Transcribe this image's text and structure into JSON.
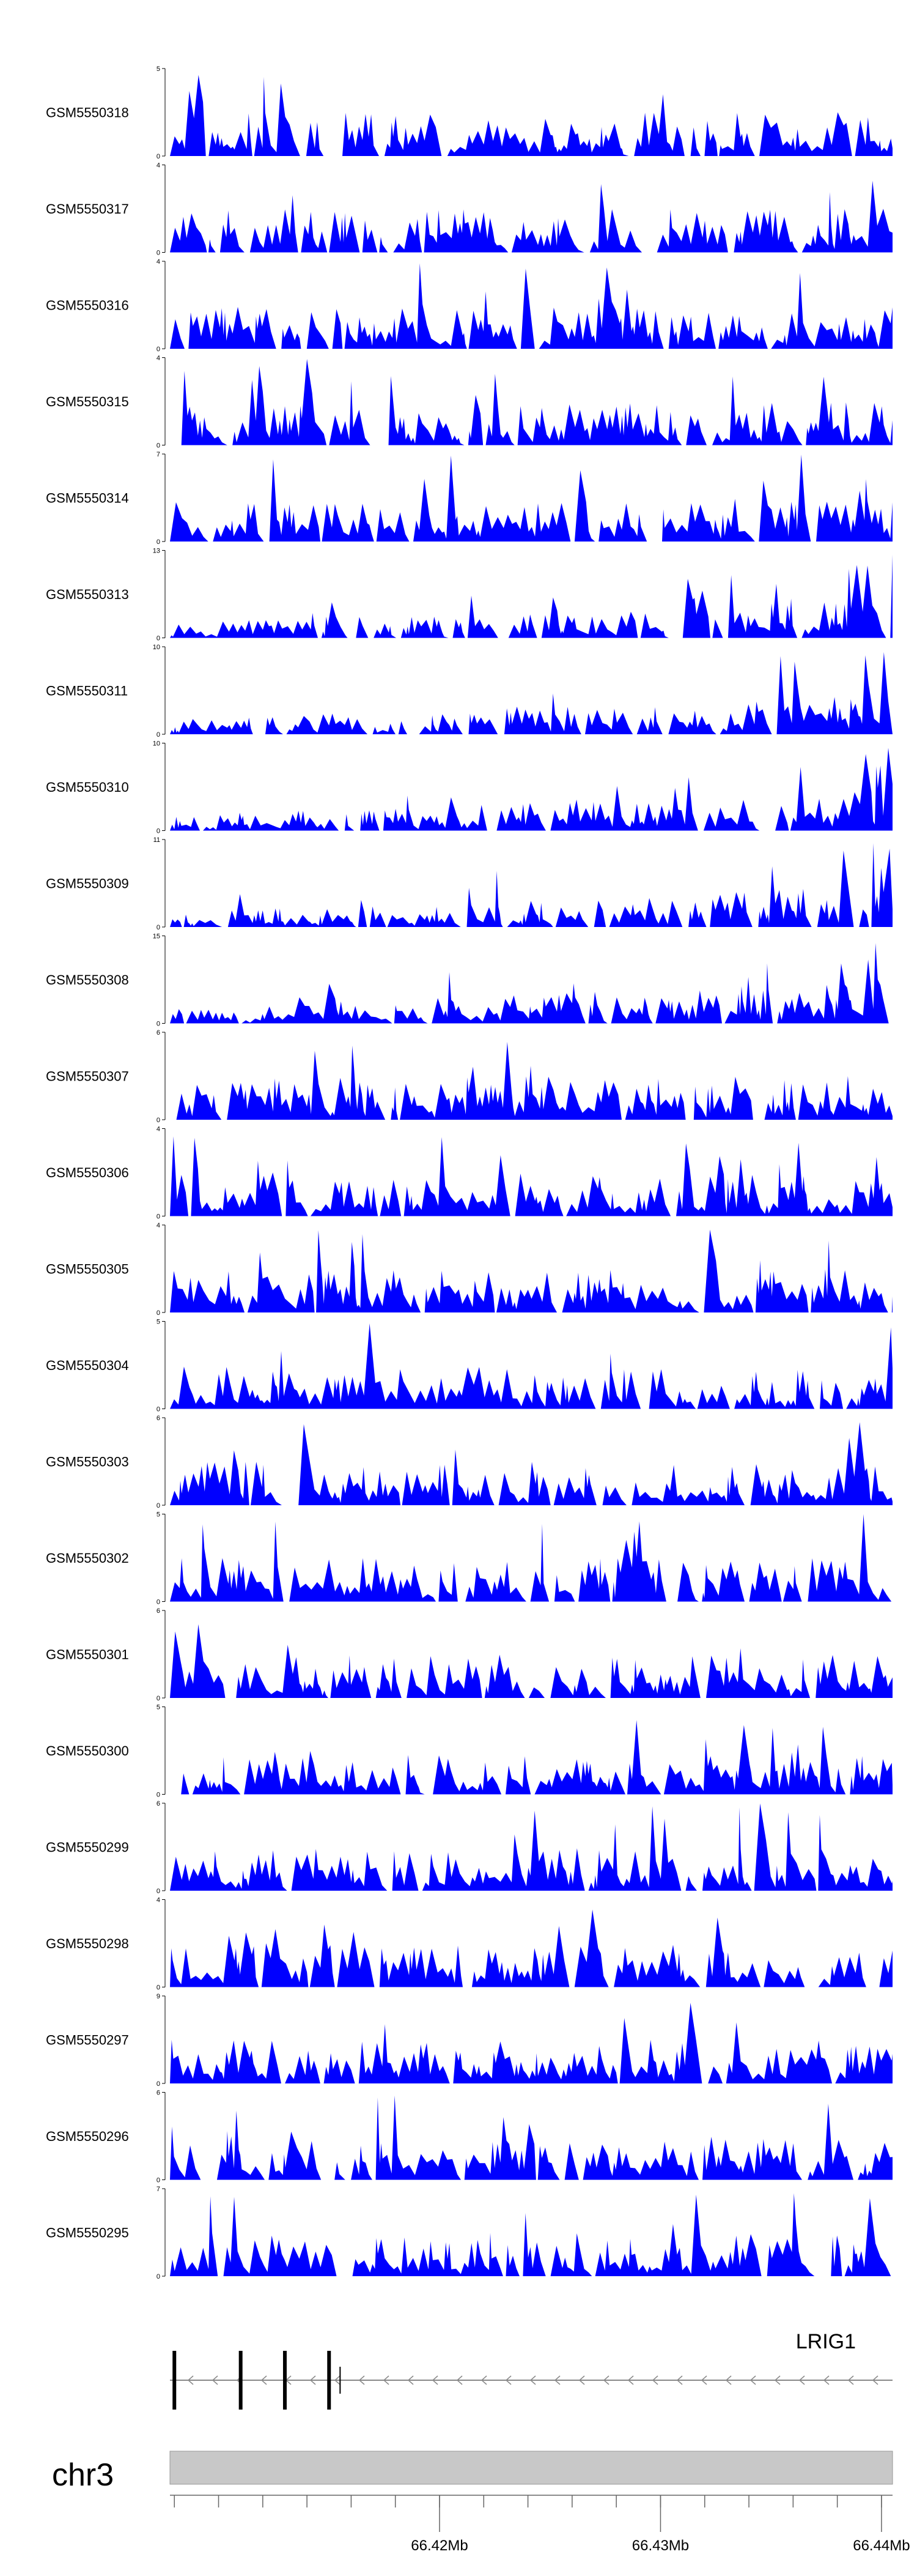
{
  "chart_data": {
    "type": "area",
    "color": "#0000ff",
    "tracks": [
      {
        "name": "GSM5550318",
        "ymax": 5
      },
      {
        "name": "GSM5550317",
        "ymax": 4
      },
      {
        "name": "GSM5550316",
        "ymax": 4
      },
      {
        "name": "GSM5550315",
        "ymax": 4
      },
      {
        "name": "GSM5550314",
        "ymax": 7
      },
      {
        "name": "GSM5550313",
        "ymax": 13
      },
      {
        "name": "GSM5550311",
        "ymax": 10
      },
      {
        "name": "GSM5550310",
        "ymax": 10
      },
      {
        "name": "GSM5550309",
        "ymax": 11
      },
      {
        "name": "GSM5550308",
        "ymax": 15
      },
      {
        "name": "GSM5550307",
        "ymax": 6
      },
      {
        "name": "GSM5550306",
        "ymax": 4
      },
      {
        "name": "GSM5550305",
        "ymax": 4
      },
      {
        "name": "GSM5550304",
        "ymax": 5
      },
      {
        "name": "GSM5550303",
        "ymax": 6
      },
      {
        "name": "GSM5550302",
        "ymax": 5
      },
      {
        "name": "GSM5550301",
        "ymax": 6
      },
      {
        "name": "GSM5550300",
        "ymax": 5
      },
      {
        "name": "GSM5550299",
        "ymax": 6
      },
      {
        "name": "GSM5550298",
        "ymax": 4
      },
      {
        "name": "GSM5550297",
        "ymax": 9
      },
      {
        "name": "GSM5550296",
        "ymax": 6
      },
      {
        "name": "GSM5550295",
        "ymax": 7
      }
    ],
    "gene": {
      "name": "LRIG1",
      "strand": "-",
      "exon_positions_mb": [
        66.408,
        66.411,
        66.413,
        66.415
      ]
    },
    "axis": {
      "chromosome": "chr3",
      "xlim_mb": [
        66.4078,
        66.4405
      ],
      "tick_labels": [
        "66.42Mb",
        "66.43Mb",
        "66.44Mb"
      ],
      "tick_values_mb": [
        66.42,
        66.43,
        66.44
      ],
      "minor_ticks_mb": [
        66.408,
        66.41,
        66.412,
        66.414,
        66.416,
        66.418,
        66.42,
        66.422,
        66.424,
        66.426,
        66.428,
        66.43,
        66.432,
        66.434,
        66.436,
        66.438,
        66.44
      ]
    }
  }
}
